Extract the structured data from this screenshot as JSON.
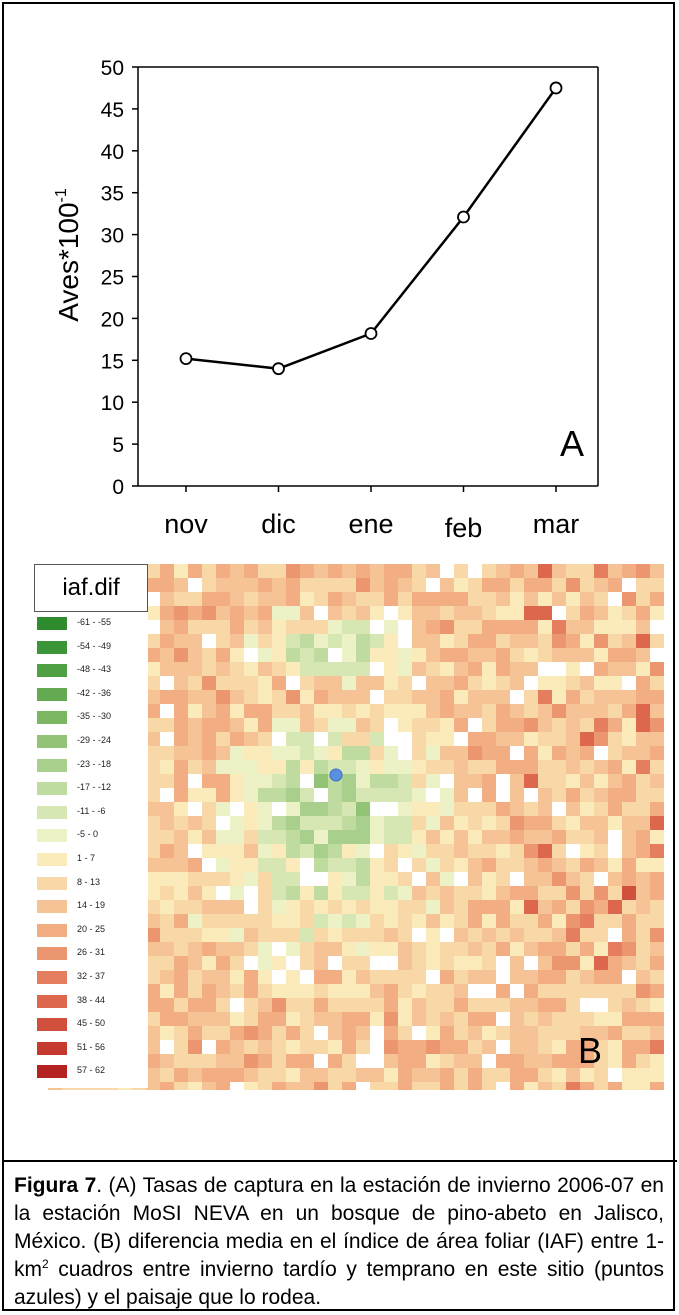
{
  "chart_data": {
    "type": "line",
    "categories": [
      "nov",
      "dic",
      "ene",
      "feb",
      "mar"
    ],
    "series": [
      {
        "values": [
          15.2,
          14,
          18.2,
          32.1,
          47.5
        ]
      }
    ],
    "ylabel": "Aves*100",
    "ylabel_sup": "-1",
    "ylim": [
      0,
      50
    ],
    "yticks": [
      0,
      5,
      10,
      15,
      20,
      25,
      30,
      35,
      40,
      45,
      50
    ],
    "panel_label": "A",
    "grid": false,
    "line_color": "#000000",
    "marker": "open-circle"
  },
  "map": {
    "panel_label": "B",
    "legend_title": "iaf.dif",
    "legend": [
      {
        "label": "-61 - -55",
        "color": "#2e8b2e"
      },
      {
        "label": "-54 - -49",
        "color": "#3d953a"
      },
      {
        "label": "-48 - -43",
        "color": "#4f9f45"
      },
      {
        "label": "-42 - -36",
        "color": "#63aa52"
      },
      {
        "label": "-35 - -30",
        "color": "#7bb663"
      },
      {
        "label": "-29 - -24",
        "color": "#92c377"
      },
      {
        "label": "-23 - -18",
        "color": "#a8cf8b"
      },
      {
        "label": "-17 - -12",
        "color": "#bfdb9f"
      },
      {
        "label": "-11 - -6",
        "color": "#d6e7b3"
      },
      {
        "label": "-5 - 0",
        "color": "#ecf2c6"
      },
      {
        "label": "1 - 7",
        "color": "#fbebbb"
      },
      {
        "label": "8 - 13",
        "color": "#f9d8a8"
      },
      {
        "label": "14 - 19",
        "color": "#f6c396"
      },
      {
        "label": "20 - 25",
        "color": "#f2ad82"
      },
      {
        "label": "26 - 31",
        "color": "#ec9670"
      },
      {
        "label": "32 - 37",
        "color": "#e57e5e"
      },
      {
        "label": "38 - 44",
        "color": "#dc674d"
      },
      {
        "label": "45 - 50",
        "color": "#d1503d"
      },
      {
        "label": "51 - 56",
        "color": "#c5392f"
      },
      {
        "label": "57 - 62",
        "color": "#b52222"
      }
    ],
    "station_color": "#5b8fe0"
  },
  "caption": {
    "label": "Figura 7",
    "text": ".   (A) Tasas de captura en la estación de invierno 2006-07 en la estación MoSI NEVA   en un bosque de pino-abeto en Jalisco, México. (B) diferencia media en el índice de área foliar (IAF) entre    1-km",
    "sup": "2",
    "text2": " cuadros entre invierno tardío y temprano en este sitio (puntos azules) y el paisaje que lo rodea."
  }
}
